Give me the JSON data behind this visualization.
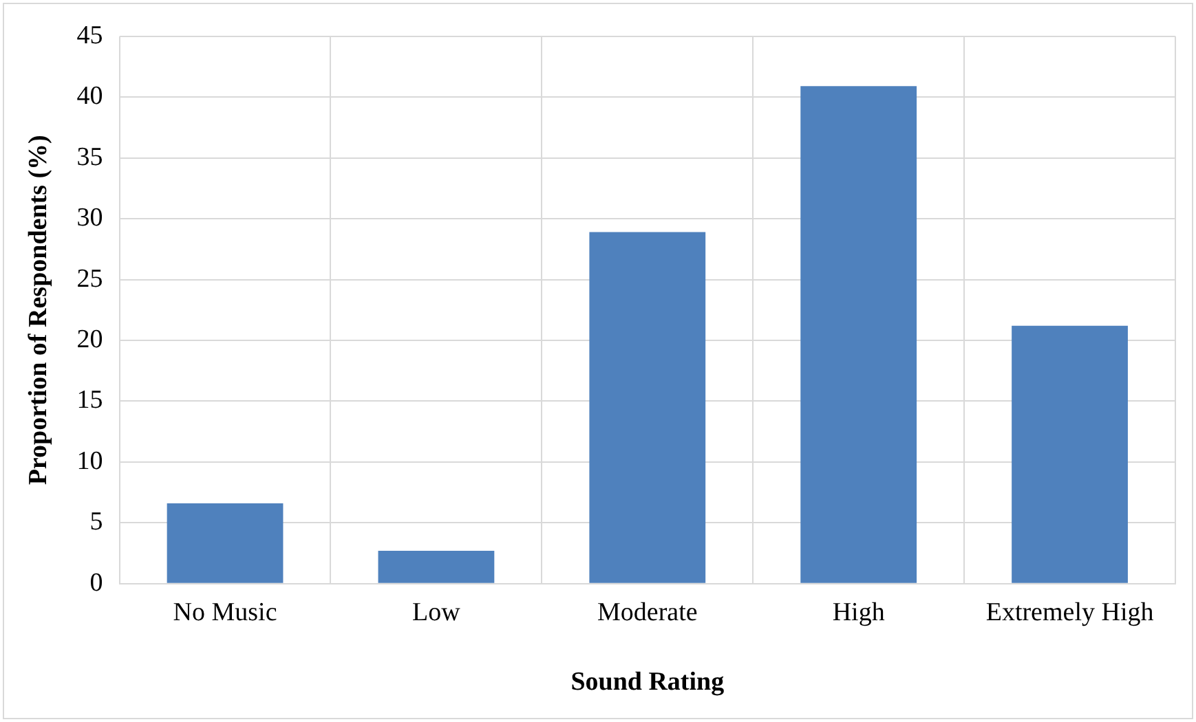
{
  "chart_data": {
    "type": "bar",
    "xlabel": "Sound Rating",
    "ylabel": "Proportion of Respondents (%)",
    "categories": [
      "No Music",
      "Low",
      "Moderate",
      "High",
      "Extremely High"
    ],
    "values": [
      6.6,
      2.7,
      28.9,
      40.9,
      21.2
    ],
    "color": "#4f81bd",
    "ylim": [
      0,
      45
    ],
    "yticks": [
      0,
      5,
      10,
      15,
      20,
      25,
      30,
      35,
      40,
      45
    ],
    "grid": true,
    "legend": false
  }
}
